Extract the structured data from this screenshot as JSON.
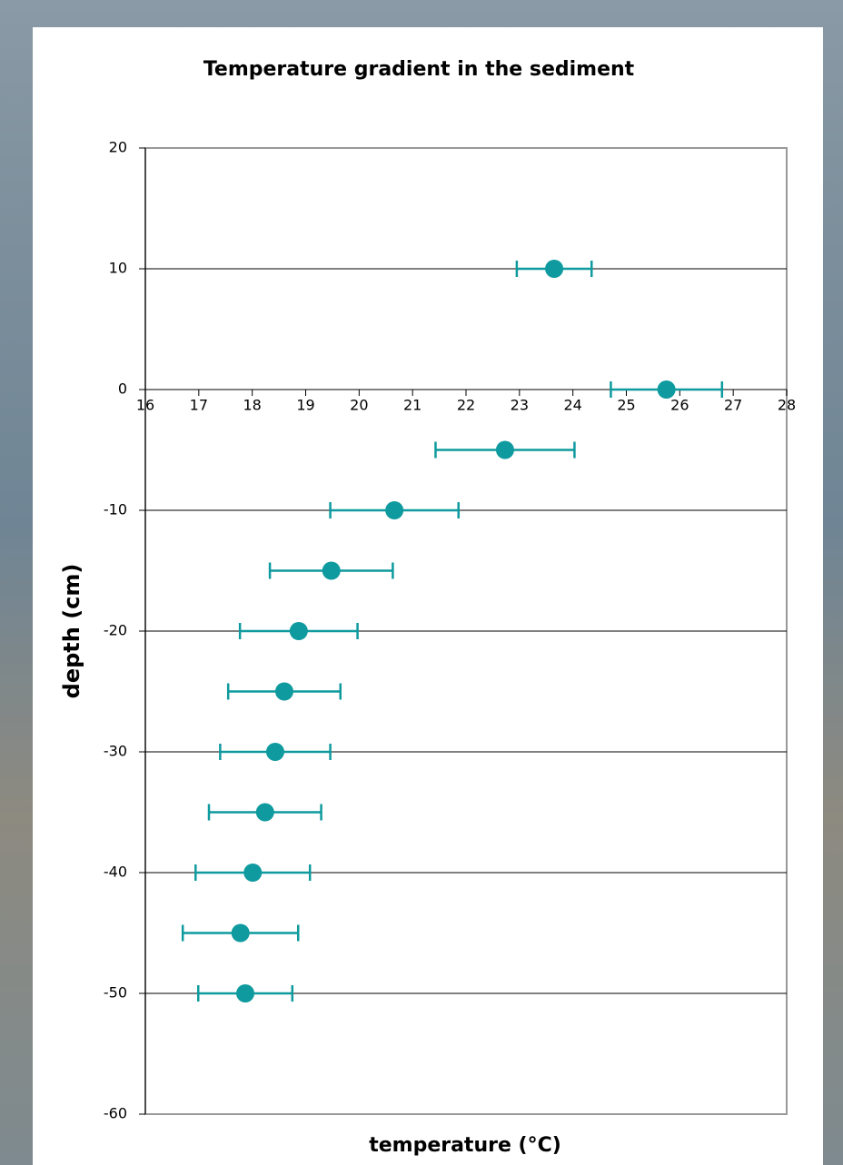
{
  "chart_data": {
    "type": "scatter",
    "title": "Temperature gradient in the sediment",
    "xlabel": "temperature (°C)",
    "ylabel": "depth (cm)",
    "series": [
      {
        "color": "#0e9a9e",
        "x": [
          23.65,
          25.75,
          22.73,
          20.66,
          19.48,
          18.87,
          18.6,
          18.43,
          18.24,
          18.01,
          17.78,
          17.87
        ],
        "values": [
          10,
          0,
          -5,
          -10,
          -15,
          -20,
          -25,
          -30,
          -35,
          -40,
          -45,
          -50
        ],
        "xerr": [
          0.7,
          1.04,
          1.3,
          1.2,
          1.15,
          1.1,
          1.05,
          1.03,
          1.05,
          1.07,
          1.08,
          0.88
        ]
      }
    ],
    "xlim": [
      16,
      28
    ],
    "xticks": [
      16,
      17,
      18,
      19,
      20,
      21,
      22,
      23,
      24,
      25,
      26,
      27,
      28
    ],
    "ylim": [
      -60,
      20
    ],
    "yticks": [
      -60,
      -50,
      -40,
      -30,
      -20,
      -10,
      0,
      10,
      20
    ],
    "grid": true
  }
}
